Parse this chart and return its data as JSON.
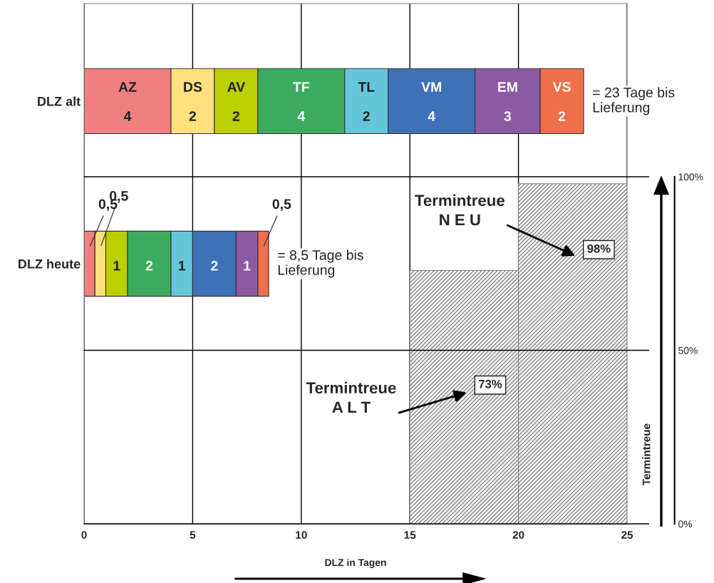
{
  "chart_data": [
    {
      "type": "bar",
      "orientation": "horizontal",
      "stacked": true,
      "categories": [
        "DLZ alt",
        "DLZ heute"
      ],
      "xlabel": "DLZ in Tagen",
      "xlim": [
        0,
        25
      ],
      "xticks": [
        0,
        5,
        10,
        15,
        20,
        25
      ],
      "grid": "x",
      "series": [
        {
          "name": "AZ",
          "color": "#f07f7f",
          "values": [
            4,
            0.5
          ],
          "value_labels": [
            "4",
            "0,5"
          ]
        },
        {
          "name": "DS",
          "color": "#ffe07f",
          "values": [
            2,
            0.5
          ],
          "value_labels": [
            "2",
            "0,5"
          ]
        },
        {
          "name": "AV",
          "color": "#bccf00",
          "values": [
            2,
            1
          ],
          "value_labels": [
            "2",
            "1"
          ]
        },
        {
          "name": "TF",
          "color": "#3dab5e",
          "values": [
            4,
            2
          ],
          "value_labels": [
            "4",
            "2"
          ]
        },
        {
          "name": "TL",
          "color": "#66c6d9",
          "values": [
            2,
            1
          ],
          "value_labels": [
            "2",
            "1"
          ]
        },
        {
          "name": "VM",
          "color": "#3d71b8",
          "values": [
            4,
            2
          ],
          "value_labels": [
            "4",
            "2"
          ]
        },
        {
          "name": "EM",
          "color": "#8c5aa3",
          "values": [
            3,
            1
          ],
          "value_labels": [
            "3",
            "1"
          ]
        },
        {
          "name": "VS",
          "color": "#ef6f4a",
          "values": [
            2,
            0.5
          ],
          "value_labels": [
            "2",
            "0,5"
          ]
        }
      ],
      "annotations": [
        "= 23 Tage bis\nLieferung",
        "= 8,5 Tage bis\nLieferung"
      ]
    },
    {
      "type": "histogram",
      "bins": [
        15,
        20,
        25
      ],
      "values": [
        73,
        98
      ],
      "value_labels": [
        "73%",
        "98%"
      ],
      "color": "#808080",
      "xlim": [
        0,
        25
      ],
      "ylim": [
        0,
        100
      ],
      "yticks": [
        {
          "value": 0,
          "label": "0%"
        },
        {
          "value": 50,
          "label": "50%"
        },
        {
          "value": 100,
          "label": "100%"
        }
      ],
      "ylabel": "Termintreue",
      "grid": "y",
      "tick_labels": "y",
      "annotations": [
        "Termintreue\nA L T",
        "Termintreue\nN E U"
      ]
    }
  ]
}
